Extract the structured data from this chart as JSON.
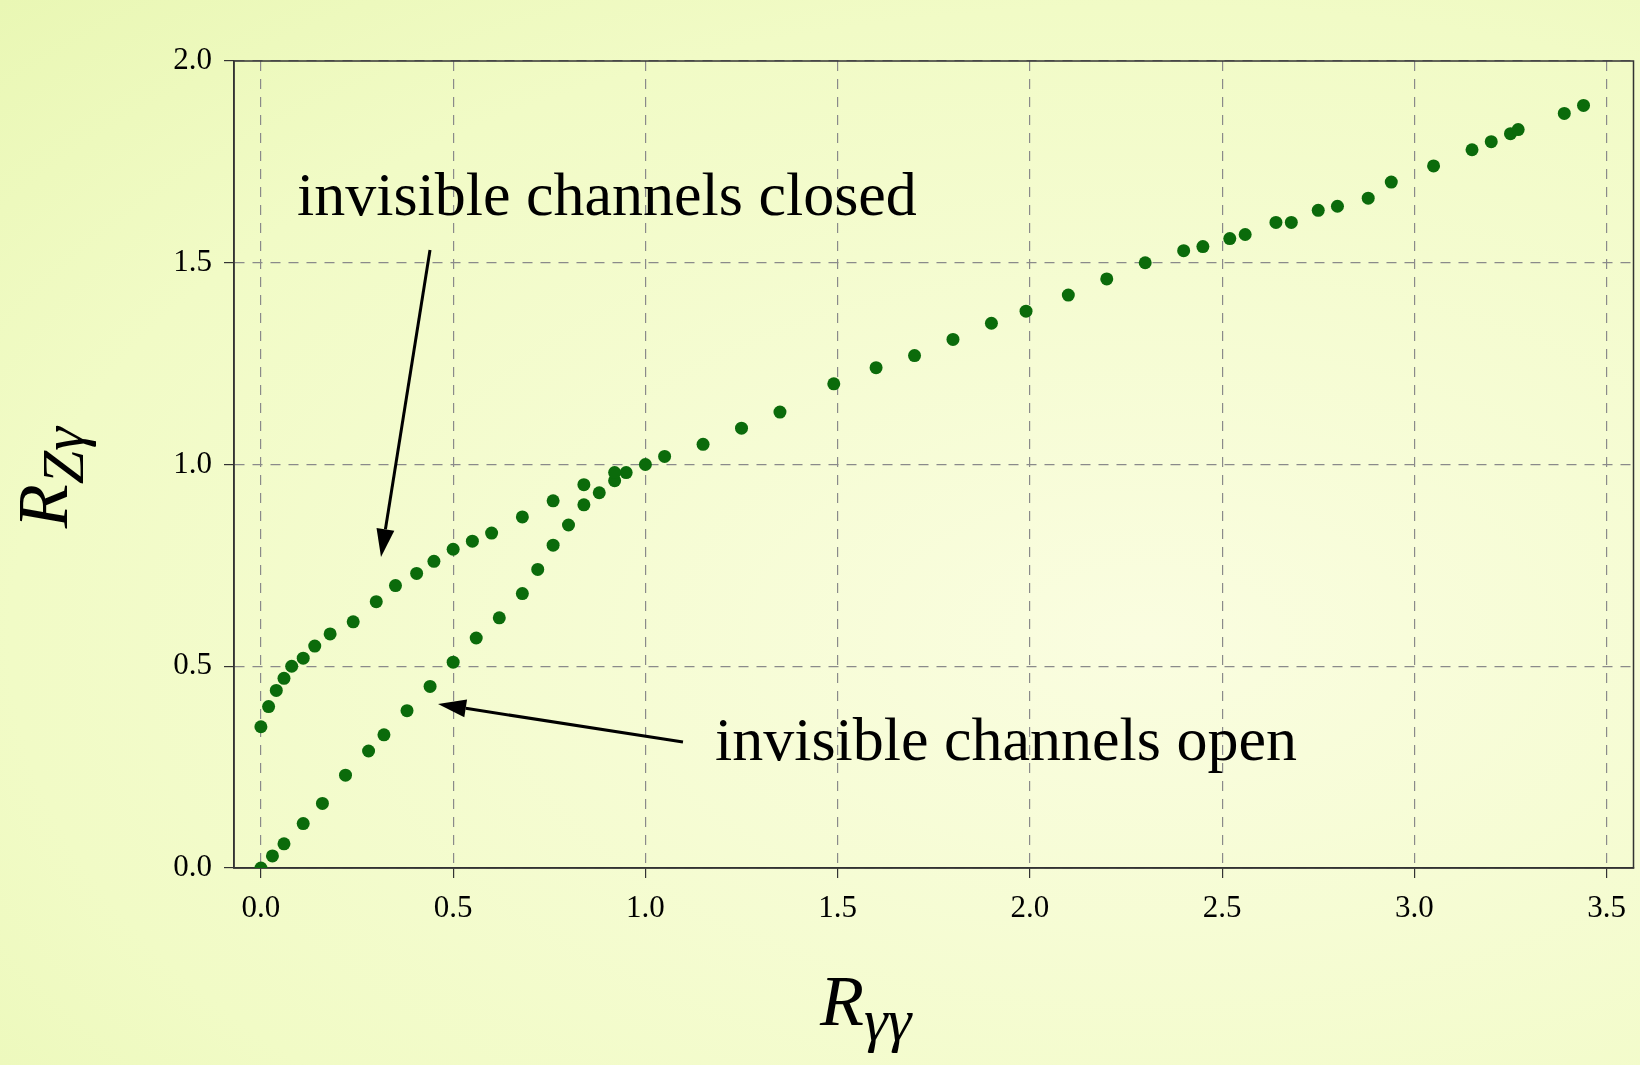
{
  "chart_data": {
    "type": "scatter",
    "xlabel": "R$_{γγ}$",
    "ylabel": "R$_{Zγ}$",
    "series": [
      {
        "color": "#0b6b0b",
        "x": [
          0,
          0.02,
          0.04,
          0.06,
          0.08,
          0.11,
          0.14,
          0.18,
          0.24,
          0.3,
          0.35,
          0.405,
          0.45,
          0.5,
          0.55,
          0.6,
          0.68,
          0.76,
          0.84,
          0.92,
          1.0
        ],
        "values": [
          0.35,
          0.4,
          0.44,
          0.47,
          0.5,
          0.52,
          0.55,
          0.58,
          0.61,
          0.66,
          0.7,
          0.73,
          0.76,
          0.79,
          0.81,
          0.83,
          0.87,
          0.91,
          0.95,
          0.98,
          1.0
        ]
      },
      {
        "color": "#0b6b0b",
        "x": [
          0,
          0.03,
          0.06,
          0.11,
          0.16,
          0.22,
          0.28,
          0.32,
          0.38,
          0.44,
          0.5,
          0.56,
          0.62,
          0.68,
          0.72,
          0.76,
          0.8,
          0.84,
          0.88,
          0.92,
          0.95
        ],
        "values": [
          0,
          0.03,
          0.06,
          0.11,
          0.16,
          0.23,
          0.29,
          0.33,
          0.39,
          0.45,
          0.51,
          0.57,
          0.62,
          0.68,
          0.74,
          0.8,
          0.85,
          0.9,
          0.93,
          0.96,
          0.98
        ]
      },
      {
        "color": "#0b6b0b",
        "x": [
          1.05,
          1.15,
          1.25,
          1.35,
          1.49,
          1.6,
          1.7,
          1.8,
          1.9,
          1.99,
          2.1,
          2.2,
          2.3,
          2.4,
          2.45,
          2.52,
          2.56,
          2.64,
          2.68,
          2.75,
          2.8,
          2.88,
          2.94,
          3.05,
          3.15,
          3.2,
          3.25,
          3.27,
          3.39,
          3.44
        ],
        "values": [
          1.02,
          1.05,
          1.09,
          1.13,
          1.2,
          1.24,
          1.27,
          1.31,
          1.35,
          1.38,
          1.42,
          1.46,
          1.5,
          1.53,
          1.54,
          1.56,
          1.57,
          1.6,
          1.6,
          1.63,
          1.64,
          1.66,
          1.7,
          1.74,
          1.78,
          1.8,
          1.82,
          1.83,
          1.87,
          1.89
        ]
      }
    ],
    "xlim": [
      -0.07,
      3.57
    ],
    "xticks": [
      {
        "value": 0,
        "label": "0.0"
      },
      {
        "value": 0.5,
        "label": "0.5"
      },
      {
        "value": 1,
        "label": "1.0"
      },
      {
        "value": 1.5,
        "label": "1.5"
      },
      {
        "value": 2,
        "label": "2.0"
      },
      {
        "value": 2.5,
        "label": "2.5"
      },
      {
        "value": 3,
        "label": "3.0"
      },
      {
        "value": 3.5,
        "label": "3.5"
      }
    ],
    "ylim": [
      0,
      2
    ],
    "yticks": [
      {
        "value": 0,
        "label": "0.0"
      },
      {
        "value": 0.5,
        "label": "0.5"
      },
      {
        "value": 1,
        "label": "1.0"
      },
      {
        "value": 1.5,
        "label": "1.5"
      },
      {
        "value": 2,
        "label": "2.0"
      }
    ],
    "grid": true,
    "marker": "circle",
    "legend": false,
    "annotations": [
      "invisible channels closed",
      "invisible channels open"
    ]
  }
}
